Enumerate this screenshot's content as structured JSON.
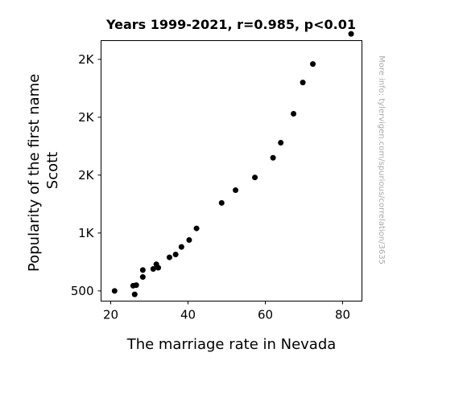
{
  "chart_data": {
    "type": "scatter",
    "title": "Years 1999-2021, r=0.985, p<0.01",
    "xlabel": "The marriage rate in Nevada",
    "ylabel_lines": [
      "Popularity of the first name",
      "Scott"
    ],
    "credit": "More info: tylervigen.com/spurious/correlation/3635",
    "xlim": [
      17.5,
      85
    ],
    "ylim": [
      412,
      2662
    ],
    "x_ticks": [
      {
        "value": 20,
        "label": "20"
      },
      {
        "value": 40,
        "label": "40"
      },
      {
        "value": 60,
        "label": "60"
      },
      {
        "value": 80,
        "label": "80"
      }
    ],
    "y_ticks": [
      {
        "value": 500,
        "label": "500"
      },
      {
        "value": 1000,
        "label": "1K"
      },
      {
        "value": 1500,
        "label": "2K"
      },
      {
        "value": 2000,
        "label": "2K"
      },
      {
        "value": 2500,
        "label": "2K"
      }
    ],
    "marker_color": "#000000",
    "grid": false,
    "points": [
      {
        "x": 82.2,
        "y": 2720
      },
      {
        "x": 72.3,
        "y": 2460
      },
      {
        "x": 69.7,
        "y": 2300
      },
      {
        "x": 67.3,
        "y": 2030
      },
      {
        "x": 64.0,
        "y": 1780
      },
      {
        "x": 62.0,
        "y": 1650
      },
      {
        "x": 57.3,
        "y": 1480
      },
      {
        "x": 52.3,
        "y": 1370
      },
      {
        "x": 48.7,
        "y": 1260
      },
      {
        "x": 42.2,
        "y": 1040
      },
      {
        "x": 40.3,
        "y": 940
      },
      {
        "x": 38.3,
        "y": 880
      },
      {
        "x": 36.8,
        "y": 815
      },
      {
        "x": 35.2,
        "y": 790
      },
      {
        "x": 32.3,
        "y": 700
      },
      {
        "x": 31.8,
        "y": 730
      },
      {
        "x": 31.0,
        "y": 690
      },
      {
        "x": 28.3,
        "y": 680
      },
      {
        "x": 28.3,
        "y": 620
      },
      {
        "x": 26.6,
        "y": 550
      },
      {
        "x": 25.8,
        "y": 545
      },
      {
        "x": 26.2,
        "y": 470
      },
      {
        "x": 21.0,
        "y": 500
      }
    ]
  }
}
